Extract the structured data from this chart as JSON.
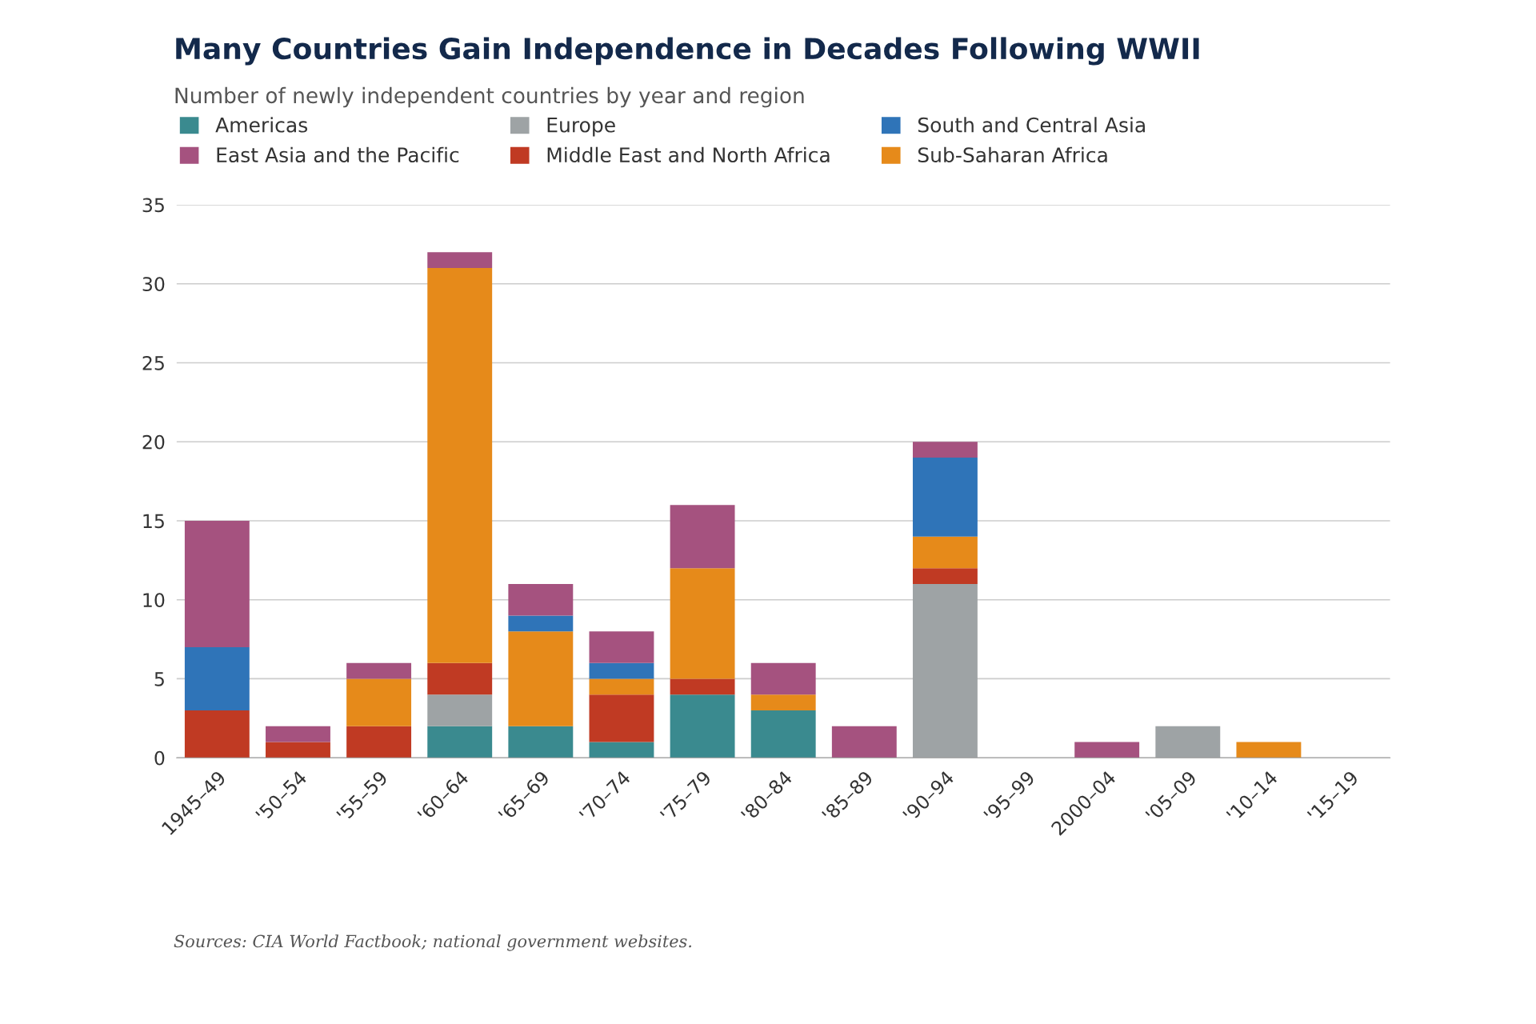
{
  "chart_data": {
    "type": "bar",
    "title": "Many Countries Gain Independence in Decades Following WWII",
    "subtitle": "Number of newly independent countries by year and region",
    "categories": [
      "1945–49",
      "'50–54",
      "'55–59",
      "'60–64",
      "'65–69",
      "'70–74",
      "'75–79",
      "'80–84",
      "'85–89",
      "'90–94",
      "'95–99",
      "2000–04",
      "'05–09",
      "'10–14",
      "'15–19"
    ],
    "stacked": true,
    "series": [
      {
        "name": "Americas",
        "color": "#3a8a8f",
        "values": [
          0,
          0,
          0,
          2,
          2,
          1,
          4,
          3,
          0,
          0,
          0,
          0,
          0,
          0,
          0
        ]
      },
      {
        "name": "Europe",
        "color": "#9ea3a5",
        "values": [
          0,
          0,
          0,
          2,
          0,
          0,
          0,
          0,
          0,
          11,
          0,
          0,
          2,
          0,
          0
        ]
      },
      {
        "name": "Middle East and North Africa",
        "color": "#c03a23",
        "values": [
          3,
          1,
          2,
          2,
          0,
          3,
          1,
          0,
          0,
          1,
          0,
          0,
          0,
          0,
          0
        ]
      },
      {
        "name": "Sub-Saharan Africa",
        "color": "#e68a1a",
        "values": [
          0,
          0,
          3,
          25,
          6,
          1,
          7,
          1,
          0,
          2,
          0,
          0,
          0,
          1,
          0
        ]
      },
      {
        "name": "South and Central Asia",
        "color": "#2f74b8",
        "values": [
          4,
          0,
          0,
          0,
          1,
          1,
          0,
          0,
          0,
          5,
          0,
          0,
          0,
          0,
          0
        ]
      },
      {
        "name": "East Asia and the Pacific",
        "color": "#a5527f",
        "values": [
          8,
          1,
          1,
          1,
          2,
          2,
          4,
          2,
          2,
          1,
          0,
          1,
          0,
          0,
          0
        ]
      }
    ],
    "ylim": [
      0,
      35
    ],
    "yticks": [
      0,
      5,
      10,
      15,
      20,
      25,
      30,
      35
    ],
    "grid": "y",
    "legend": "top left",
    "annotations": [
      "Sources: CIA World Factbook; national government websites."
    ]
  }
}
